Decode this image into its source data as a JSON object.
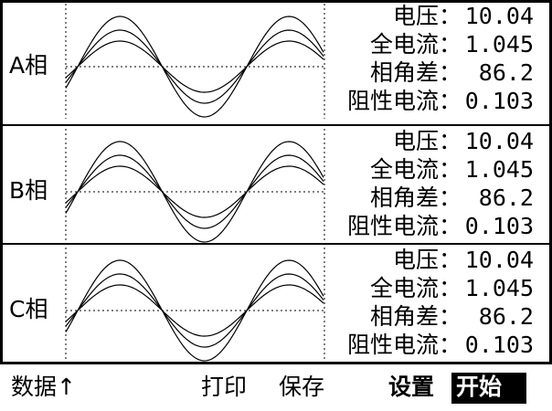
{
  "panels": [
    {
      "phase": "A相",
      "readings": [
        {
          "label": "电压：",
          "value": "10.04"
        },
        {
          "label": "全电流：",
          "value": "1.045"
        },
        {
          "label": "相角差：",
          "value": "86.2"
        },
        {
          "label": "阻性电流：",
          "value": "0.103"
        }
      ]
    },
    {
      "phase": "B相",
      "readings": [
        {
          "label": "电压：",
          "value": "10.04"
        },
        {
          "label": "全电流：",
          "value": "1.045"
        },
        {
          "label": "相角差：",
          "value": "86.2"
        },
        {
          "label": "阻性电流：",
          "value": "0.103"
        }
      ]
    },
    {
      "phase": "C相",
      "readings": [
        {
          "label": "电压：",
          "value": "10.04"
        },
        {
          "label": "全电流：",
          "value": "1.045"
        },
        {
          "label": "相角差：",
          "value": "86.2"
        },
        {
          "label": "阻性电流：",
          "value": "0.103"
        }
      ]
    }
  ],
  "footer": {
    "buttons": [
      "数据↑",
      "打印",
      "保存",
      "设置",
      "开始"
    ]
  }
}
